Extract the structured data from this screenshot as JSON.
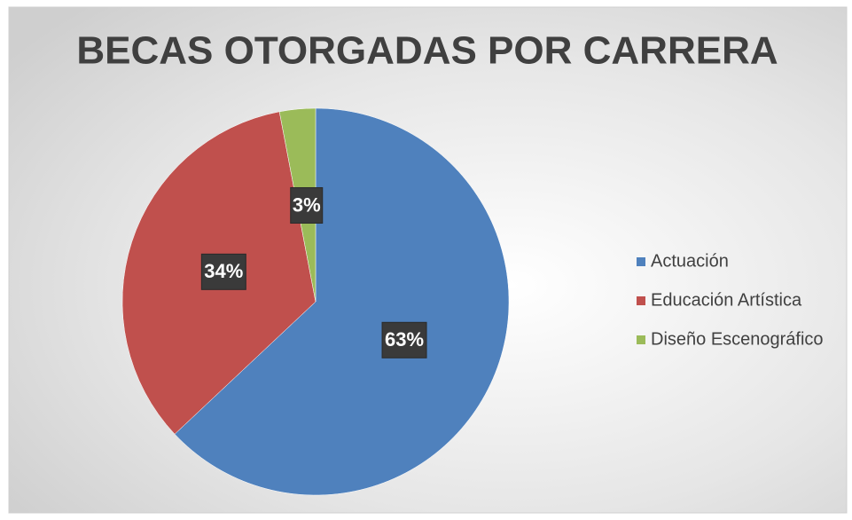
{
  "chart_data": {
    "type": "pie",
    "title": "BECAS OTORGADAS POR CARRERA",
    "categories": [
      "Actuación",
      "Educación Artística",
      "Diseño Escenográfico"
    ],
    "values": [
      63,
      34,
      3
    ],
    "value_labels": [
      "63%",
      "34%",
      "3%"
    ],
    "colors": [
      "#4f81bd",
      "#c0504d",
      "#9bbb59"
    ],
    "legend": "right"
  }
}
